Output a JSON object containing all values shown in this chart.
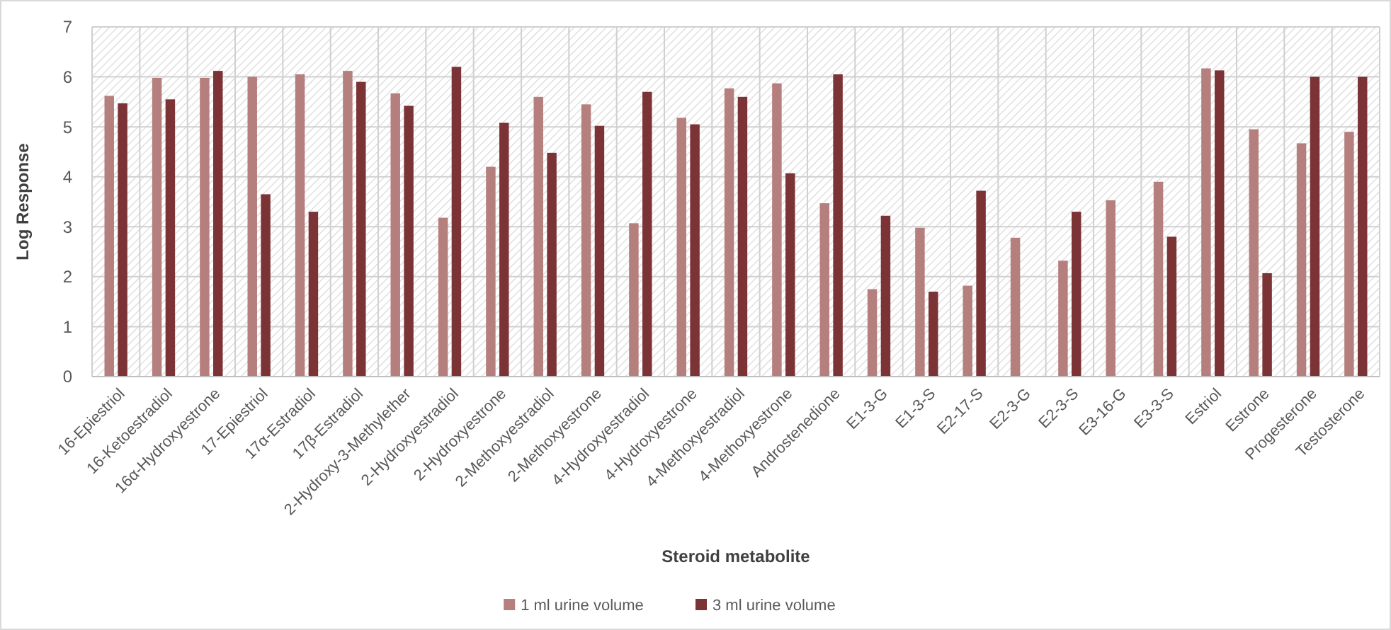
{
  "chart_data": {
    "type": "bar",
    "xlabel": "Steroid metabolite",
    "ylabel": "Log Response",
    "categories": [
      "16-Epiestriol",
      "16-Ketoestradiol",
      "16α-Hydroxyestrone",
      "17-Epiestriol",
      "17α-Estradiol",
      "17β-Estradiol",
      "2-Hydroxy-3-Methylether",
      "2-Hydroxyestradiol",
      "2-Hydroxyestrone",
      "2-Methoxyestradiol",
      "2-Methoxyestrone",
      "4-Hydroxyestradiol",
      "4-Hydroxyestrone",
      "4-Methoxyestradiol",
      "4-Methoxyestrone",
      "Androstenedione",
      "E1-3-G",
      "E1-3-S",
      "E2-17-S",
      "E2-3-G",
      "E2-3-S",
      "E3-16-G",
      "E3-3-S",
      "Estriol",
      "Estrone",
      "Progesterone",
      "Testosterone"
    ],
    "series": [
      {
        "name": "1 ml urine volume",
        "color": "#b57f7d",
        "values": [
          5.62,
          5.98,
          5.98,
          6.0,
          6.05,
          6.12,
          5.67,
          3.18,
          4.2,
          5.6,
          5.45,
          3.07,
          5.18,
          5.77,
          5.87,
          3.47,
          1.75,
          2.98,
          1.82,
          2.78,
          2.32,
          3.53,
          3.9,
          6.17,
          4.95,
          4.67,
          4.9
        ]
      },
      {
        "name": "3 ml urine volume",
        "color": "#7b3336",
        "values": [
          5.47,
          5.55,
          6.12,
          3.65,
          3.3,
          5.9,
          5.42,
          6.2,
          5.08,
          4.48,
          5.02,
          5.7,
          5.05,
          5.6,
          4.07,
          6.05,
          3.22,
          1.7,
          3.72,
          null,
          3.3,
          null,
          2.8,
          6.13,
          2.07,
          6.0,
          6.0
        ]
      }
    ],
    "ylim": [
      0,
      7
    ],
    "yticks": [
      0,
      1,
      2,
      3,
      4,
      5,
      6,
      7
    ],
    "grid": true,
    "legend": "bottom"
  }
}
